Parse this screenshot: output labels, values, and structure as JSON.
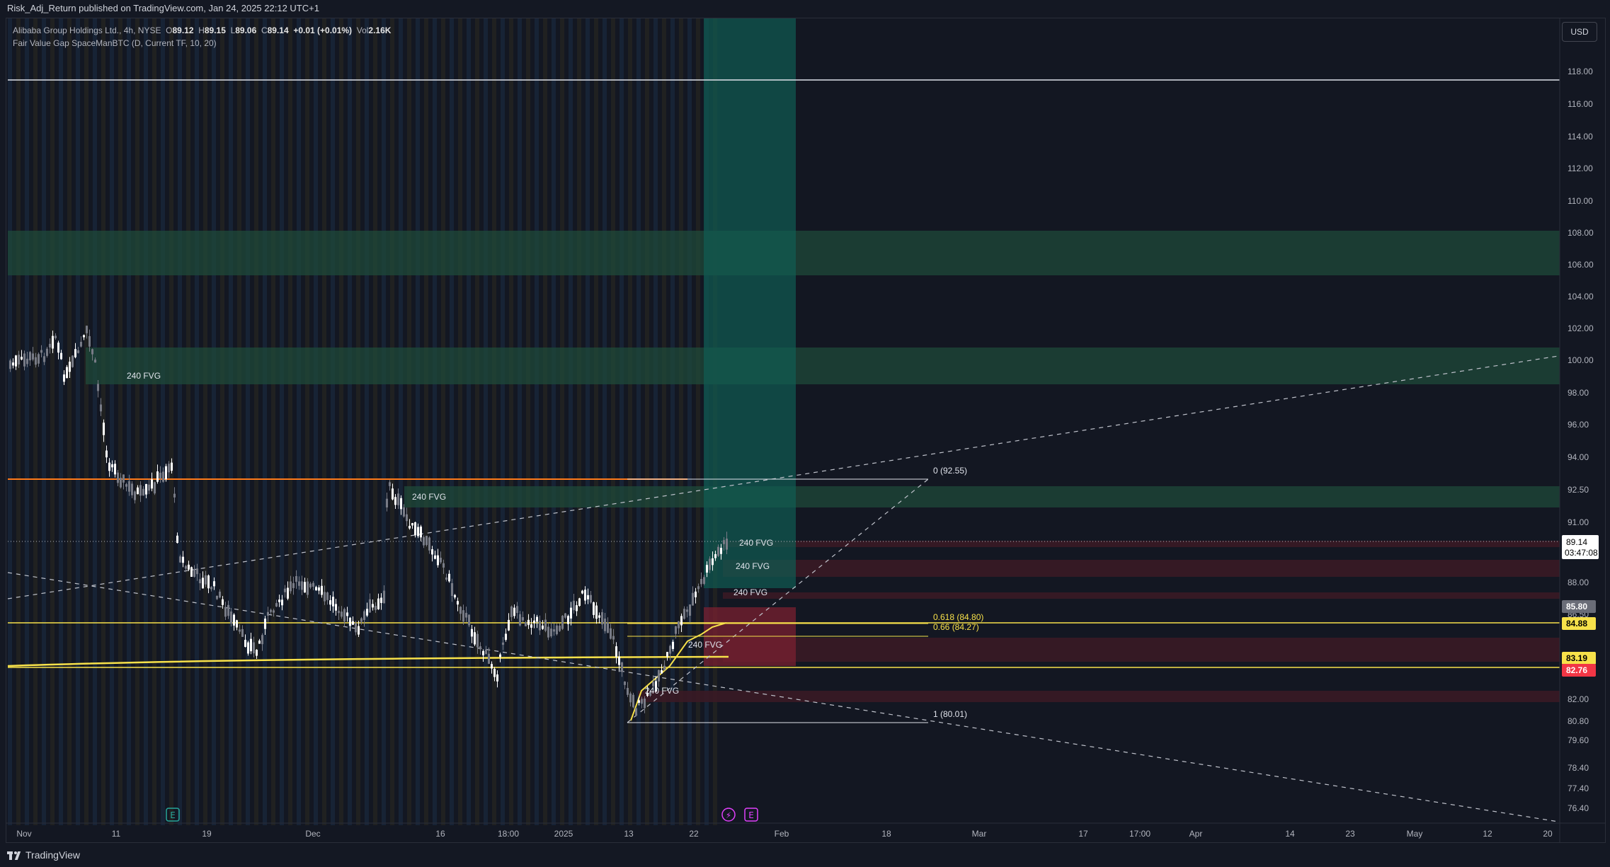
{
  "header": {
    "published_text": "Risk_Adj_Return published on TradingView.com, Jan 24, 2025 22:12 UTC+1"
  },
  "legend": {
    "symbol_text": "Alibaba Group Holdings Ltd., 4h, NYSE",
    "o_label": "O",
    "o_value": "89.12",
    "h_label": "H",
    "h_value": "89.15",
    "l_label": "L",
    "l_value": "89.06",
    "c_label": "C",
    "c_value": "89.14",
    "change": "+0.01 (+0.01%)",
    "vol_label": "Vol",
    "vol_value": "2.16K",
    "indicator_text": "Fair Value Gap SpaceManBTC (D, Current TF, 10, 20)"
  },
  "currency_button": "USD",
  "price_axis": {
    "ticks": [
      "118.00",
      "116.00",
      "114.00",
      "112.00",
      "110.00",
      "108.00",
      "106.00",
      "104.00",
      "102.00",
      "100.00",
      "98.00",
      "96.00",
      "94.00",
      "92.50",
      "91.00",
      "88.00",
      "86.50",
      "82.00",
      "80.80",
      "79.60",
      "78.40",
      "77.40",
      "76.40"
    ],
    "current_price": "89.14",
    "countdown": "03:47:08",
    "tags": [
      {
        "label": "85.80",
        "bg": "#6a6d78",
        "color": "#ffffff"
      },
      {
        "label": "84.88",
        "bg": "#f7e14a",
        "color": "#000000"
      },
      {
        "label": "83.19",
        "bg": "#f7e14a",
        "color": "#000000"
      },
      {
        "label": "82.76",
        "bg": "#f23645",
        "color": "#ffffff"
      }
    ]
  },
  "time_axis": {
    "labels": [
      "Nov",
      "11",
      "19",
      "Dec",
      "16",
      "18:00",
      "2025",
      "13",
      "22",
      "Feb",
      "18",
      "Mar",
      "17",
      "17:00",
      "Apr",
      "14",
      "23",
      "May",
      "12",
      "20"
    ]
  },
  "annotations": {
    "fvg_label": "240 FVG",
    "fib_0": "0 (92.55)",
    "fib_618": "0.618 (84.80)",
    "fib_66": "0.66 (84.27)",
    "fib_1": "1 (80.01)"
  },
  "event_icons": [
    "E",
    "⚡",
    "E"
  ],
  "footer": {
    "brand": "TradingView"
  },
  "colors": {
    "background": "#131722",
    "candle_up": "#ffffff",
    "candle_down": "#787b86",
    "fvg_green": "#1e4a3c",
    "fvg_red": "#5a1f2a",
    "long_profit": "#0f5c52",
    "long_loss": "#7a2030",
    "yellow": "#f7e14a",
    "orange": "#ff7a1a"
  },
  "chart_data": {
    "type": "candlestick",
    "title": "Alibaba Group Holdings Ltd., 4h, NYSE",
    "ylim": [
      75.5,
      120.5
    ],
    "y_scale": "log",
    "fib_levels": [
      {
        "ratio": 0,
        "price": 92.55
      },
      {
        "ratio": 0.618,
        "price": 84.8
      },
      {
        "ratio": 0.66,
        "price": 84.27
      },
      {
        "ratio": 1,
        "price": 80.01
      }
    ],
    "horizontal_levels": [
      117.4,
      92.55,
      84.88,
      83.19,
      82.76
    ],
    "last_close": 89.14
  }
}
